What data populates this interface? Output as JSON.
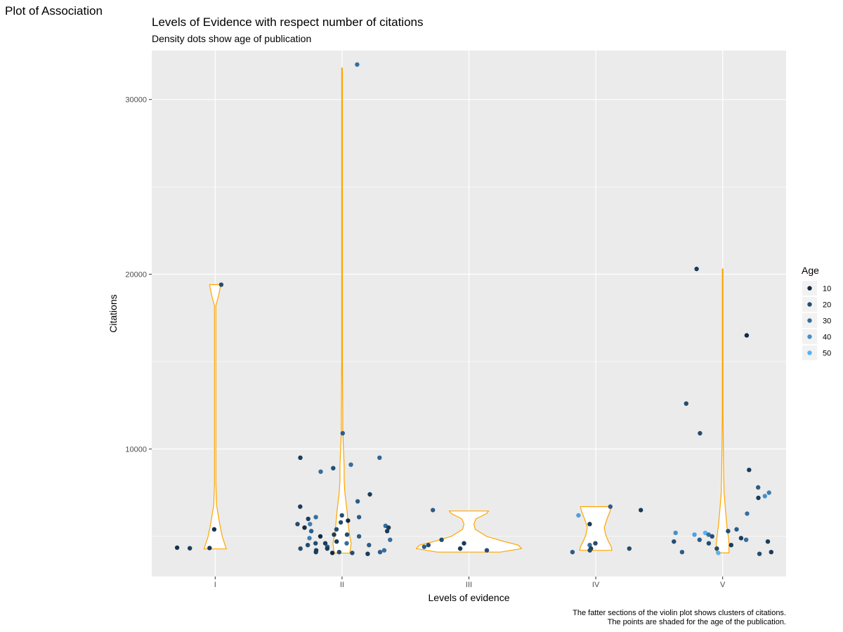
{
  "page": {
    "heading": "Plot of Association"
  },
  "chart_data": {
    "type": "violin-jitter",
    "title": "Levels of Evidence with respect number of citations",
    "subtitle": "Density dots show age of publication",
    "xlabel": "Levels of evidence",
    "ylabel": "Citations",
    "categories": [
      "I",
      "II",
      "III",
      "IV",
      "V"
    ],
    "yticks": [
      10000,
      20000,
      30000
    ],
    "ylim": [
      2700,
      32800
    ],
    "grid": true,
    "violin_color": "#FFA500",
    "violins": [
      {
        "category": "I",
        "min": 4280,
        "max": 19400,
        "profile": [
          [
            4280,
            16
          ],
          [
            4500,
            14
          ],
          [
            5000,
            10
          ],
          [
            5800,
            6
          ],
          [
            6800,
            2
          ],
          [
            8000,
            1
          ],
          [
            10000,
            1
          ],
          [
            14000,
            1
          ],
          [
            17000,
            1
          ],
          [
            18200,
            1
          ],
          [
            18800,
            5
          ],
          [
            19400,
            8
          ]
        ]
      },
      {
        "category": "II",
        "min": 4040,
        "max": 31800,
        "profile": [
          [
            4040,
            11
          ],
          [
            4300,
            12
          ],
          [
            4600,
            13
          ],
          [
            5000,
            11
          ],
          [
            5600,
            9
          ],
          [
            6500,
            7
          ],
          [
            7500,
            4
          ],
          [
            8200,
            3
          ],
          [
            9000,
            3
          ],
          [
            10000,
            2
          ],
          [
            11000,
            1
          ],
          [
            12000,
            1
          ],
          [
            15000,
            0.5
          ],
          [
            20000,
            0.5
          ],
          [
            31800,
            0.5
          ]
        ]
      },
      {
        "category": "III",
        "min": 4100,
        "max": 6450,
        "profile": [
          [
            4100,
            45
          ],
          [
            4300,
            75
          ],
          [
            4500,
            70
          ],
          [
            4700,
            50
          ],
          [
            5000,
            25
          ],
          [
            5400,
            9
          ],
          [
            5700,
            7
          ],
          [
            6000,
            10
          ],
          [
            6300,
            25
          ],
          [
            6450,
            28
          ]
        ]
      },
      {
        "category": "IV",
        "min": 4200,
        "max": 6700,
        "profile": [
          [
            4200,
            23
          ],
          [
            4400,
            22
          ],
          [
            4700,
            18
          ],
          [
            5100,
            14
          ],
          [
            5500,
            12
          ],
          [
            6000,
            16
          ],
          [
            6400,
            20
          ],
          [
            6700,
            22
          ]
        ]
      },
      {
        "category": "V",
        "min": 4050,
        "max": 20300,
        "profile": [
          [
            4050,
            9
          ],
          [
            4300,
            9
          ],
          [
            4600,
            9
          ],
          [
            5000,
            8
          ],
          [
            5600,
            6
          ],
          [
            6500,
            4
          ],
          [
            7500,
            2
          ],
          [
            8500,
            1.5
          ],
          [
            10000,
            1
          ],
          [
            12000,
            0.5
          ],
          [
            15000,
            0.5
          ],
          [
            17000,
            0.5
          ],
          [
            20300,
            0.5
          ]
        ]
      }
    ],
    "points": [
      {
        "x": "I",
        "y": 5400,
        "age": 12
      },
      {
        "x": "I",
        "y": 19400,
        "age": 20
      },
      {
        "x": "I",
        "y": 4350,
        "age": 12
      },
      {
        "x": "I",
        "y": 4320,
        "age": 16
      },
      {
        "x": "I",
        "y": 4330,
        "age": 14
      },
      {
        "x": "II",
        "y": 10900,
        "age": 25
      },
      {
        "x": "II",
        "y": 9500,
        "age": 15
      },
      {
        "x": "II",
        "y": 9500,
        "age": 28
      },
      {
        "x": "II",
        "y": 9100,
        "age": 30
      },
      {
        "x": "II",
        "y": 8900,
        "age": 20
      },
      {
        "x": "II",
        "y": 8700,
        "age": 30
      },
      {
        "x": "II",
        "y": 7400,
        "age": 15
      },
      {
        "x": "II",
        "y": 7000,
        "age": 25
      },
      {
        "x": "II",
        "y": 6700,
        "age": 15
      },
      {
        "x": "II",
        "y": 6200,
        "age": 20
      },
      {
        "x": "II",
        "y": 6100,
        "age": 30
      },
      {
        "x": "II",
        "y": 6100,
        "age": 25
      },
      {
        "x": "II",
        "y": 6000,
        "age": 15
      },
      {
        "x": "II",
        "y": 5900,
        "age": 10
      },
      {
        "x": "II",
        "y": 5800,
        "age": 20
      },
      {
        "x": "II",
        "y": 5700,
        "age": 35
      },
      {
        "x": "II",
        "y": 5700,
        "age": 20
      },
      {
        "x": "II",
        "y": 5600,
        "age": 30
      },
      {
        "x": "II",
        "y": 5500,
        "age": 15
      },
      {
        "x": "II",
        "y": 5500,
        "age": 10
      },
      {
        "x": "II",
        "y": 5400,
        "age": 20
      },
      {
        "x": "II",
        "y": 5300,
        "age": 15
      },
      {
        "x": "II",
        "y": 5300,
        "age": 25
      },
      {
        "x": "II",
        "y": 5100,
        "age": 15
      },
      {
        "x": "II",
        "y": 5100,
        "age": 20
      },
      {
        "x": "II",
        "y": 5000,
        "age": 25
      },
      {
        "x": "II",
        "y": 5000,
        "age": 10
      },
      {
        "x": "II",
        "y": 4900,
        "age": 35
      },
      {
        "x": "II",
        "y": 4800,
        "age": 30
      },
      {
        "x": "II",
        "y": 4700,
        "age": 15
      },
      {
        "x": "II",
        "y": 4600,
        "age": 20
      },
      {
        "x": "II",
        "y": 4600,
        "age": 30
      },
      {
        "x": "II",
        "y": 4600,
        "age": 15
      },
      {
        "x": "II",
        "y": 4500,
        "age": 20
      },
      {
        "x": "II",
        "y": 4500,
        "age": 25
      },
      {
        "x": "II",
        "y": 4400,
        "age": 25
      },
      {
        "x": "II",
        "y": 4300,
        "age": 15
      },
      {
        "x": "II",
        "y": 4300,
        "age": 20
      },
      {
        "x": "II",
        "y": 4200,
        "age": 30
      },
      {
        "x": "II",
        "y": 4200,
        "age": 15
      },
      {
        "x": "II",
        "y": 4100,
        "age": 25
      },
      {
        "x": "II",
        "y": 4100,
        "age": 20
      },
      {
        "x": "II",
        "y": 4100,
        "age": 15
      },
      {
        "x": "II",
        "y": 4050,
        "age": 20
      },
      {
        "x": "II",
        "y": 4050,
        "age": 10
      },
      {
        "x": "II",
        "y": 4000,
        "age": 15
      },
      {
        "x": "II",
        "y": 32000,
        "age": 30
      },
      {
        "x": "III",
        "y": 6500,
        "age": 25
      },
      {
        "x": "III",
        "y": 4800,
        "age": 20
      },
      {
        "x": "III",
        "y": 4600,
        "age": 15
      },
      {
        "x": "III",
        "y": 4500,
        "age": 20
      },
      {
        "x": "III",
        "y": 4400,
        "age": 25
      },
      {
        "x": "III",
        "y": 4300,
        "age": 15
      },
      {
        "x": "III",
        "y": 4200,
        "age": 20
      },
      {
        "x": "IV",
        "y": 6700,
        "age": 25
      },
      {
        "x": "IV",
        "y": 6500,
        "age": 15
      },
      {
        "x": "IV",
        "y": 6200,
        "age": 45
      },
      {
        "x": "IV",
        "y": 5700,
        "age": 15
      },
      {
        "x": "IV",
        "y": 4600,
        "age": 20
      },
      {
        "x": "IV",
        "y": 4500,
        "age": 30
      },
      {
        "x": "IV",
        "y": 4300,
        "age": 20
      },
      {
        "x": "IV",
        "y": 4300,
        "age": 15
      },
      {
        "x": "IV",
        "y": 4200,
        "age": 20
      },
      {
        "x": "IV",
        "y": 4100,
        "age": 25
      },
      {
        "x": "V",
        "y": 20300,
        "age": 15
      },
      {
        "x": "V",
        "y": 16500,
        "age": 10
      },
      {
        "x": "V",
        "y": 12600,
        "age": 20
      },
      {
        "x": "V",
        "y": 10900,
        "age": 20
      },
      {
        "x": "V",
        "y": 8800,
        "age": 15
      },
      {
        "x": "V",
        "y": 7800,
        "age": 25
      },
      {
        "x": "V",
        "y": 7500,
        "age": 35
      },
      {
        "x": "V",
        "y": 7300,
        "age": 40
      },
      {
        "x": "V",
        "y": 7200,
        "age": 15
      },
      {
        "x": "V",
        "y": 6300,
        "age": 30
      },
      {
        "x": "V",
        "y": 5400,
        "age": 25
      },
      {
        "x": "V",
        "y": 5300,
        "age": 20
      },
      {
        "x": "V",
        "y": 5200,
        "age": 40
      },
      {
        "x": "V",
        "y": 5200,
        "age": 50
      },
      {
        "x": "V",
        "y": 5100,
        "age": 30
      },
      {
        "x": "V",
        "y": 5100,
        "age": 45
      },
      {
        "x": "V",
        "y": 5000,
        "age": 20
      },
      {
        "x": "V",
        "y": 4900,
        "age": 15
      },
      {
        "x": "V",
        "y": 4800,
        "age": 30
      },
      {
        "x": "V",
        "y": 4800,
        "age": 25
      },
      {
        "x": "V",
        "y": 4700,
        "age": 15
      },
      {
        "x": "V",
        "y": 4700,
        "age": 20
      },
      {
        "x": "V",
        "y": 4600,
        "age": 20
      },
      {
        "x": "V",
        "y": 4500,
        "age": 15
      },
      {
        "x": "V",
        "y": 4300,
        "age": 20
      },
      {
        "x": "V",
        "y": 4100,
        "age": 25
      },
      {
        "x": "V",
        "y": 4100,
        "age": 15
      },
      {
        "x": "V",
        "y": 4050,
        "age": 50
      },
      {
        "x": "V",
        "y": 4000,
        "age": 20
      }
    ],
    "legend": {
      "title": "Age",
      "position": "right",
      "entries": [
        {
          "label": "10",
          "age": 10
        },
        {
          "label": "20",
          "age": 20
        },
        {
          "label": "30",
          "age": 30
        },
        {
          "label": "40",
          "age": 40
        },
        {
          "label": "50",
          "age": 50
        }
      ],
      "color_low": "#132B43",
      "color_high": "#56B1F7"
    },
    "caption_lines": [
      "The fatter sections of the violin plot shows clusters of citations.",
      "The points are shaded for the age of the publication."
    ],
    "panel_background": "#EBEBEB"
  }
}
